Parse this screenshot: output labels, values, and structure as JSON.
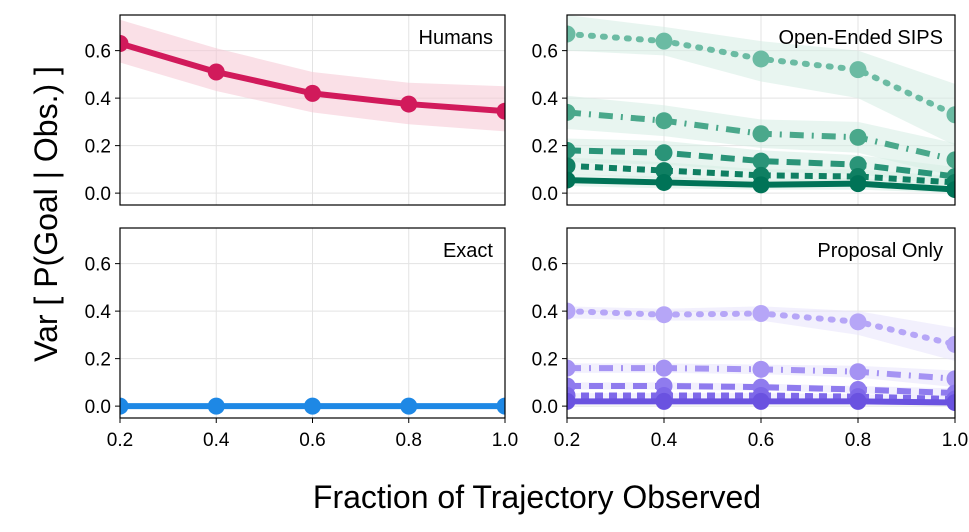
{
  "figure": {
    "xlabel": "Fraction of Trajectory Observed",
    "ylabel": "Var [ P(Goal | Obs.) ]"
  },
  "chart_data": [
    {
      "type": "line",
      "title": "Humans",
      "xlim": [
        0.2,
        1.0
      ],
      "ylim": [
        -0.05,
        0.75
      ],
      "xticks": [
        "0.2",
        "0.4",
        "0.6",
        "0.8",
        "1.0"
      ],
      "yticks": [
        "0.0",
        "0.2",
        "0.4",
        "0.6"
      ],
      "x": [
        0.2,
        0.4,
        0.6,
        0.8,
        1.0
      ],
      "series": [
        {
          "name": "Humans",
          "values": [
            0.63,
            0.51,
            0.42,
            0.375,
            0.345
          ],
          "lower": [
            0.55,
            0.43,
            0.34,
            0.29,
            0.26
          ],
          "upper": [
            0.73,
            0.61,
            0.51,
            0.465,
            0.45
          ],
          "color": "#d11a5b",
          "band_color": "#f5c6d4",
          "style": "solid"
        }
      ]
    },
    {
      "type": "line",
      "title": "Open-Ended SIPS",
      "xlim": [
        0.2,
        1.0
      ],
      "ylim": [
        -0.05,
        0.75
      ],
      "xticks": [
        "0.2",
        "0.4",
        "0.6",
        "0.8",
        "1.0"
      ],
      "yticks": [
        "0.0",
        "0.2",
        "0.4",
        "0.6"
      ],
      "x": [
        0.2,
        0.4,
        0.6,
        0.8,
        1.0
      ],
      "series": [
        {
          "name": "SIPS dotted",
          "values": [
            0.67,
            0.64,
            0.565,
            0.52,
            0.33
          ],
          "lower": [
            0.6,
            0.58,
            0.47,
            0.4,
            0.2
          ],
          "upper": [
            0.75,
            0.7,
            0.64,
            0.6,
            0.46
          ],
          "color": "#6bbba3",
          "band_color": "#d5ece4",
          "style": "dotted"
        },
        {
          "name": "SIPS dash-dot",
          "values": [
            0.34,
            0.305,
            0.25,
            0.235,
            0.14
          ],
          "lower": [
            0.27,
            0.24,
            0.19,
            0.17,
            0.07
          ],
          "upper": [
            0.41,
            0.37,
            0.31,
            0.3,
            0.21
          ],
          "color": "#4aa88b",
          "band_color": "#d5ece4",
          "style": "dashdot"
        },
        {
          "name": "SIPS dashed",
          "values": [
            0.18,
            0.17,
            0.135,
            0.12,
            0.07
          ],
          "lower": [
            0.13,
            0.12,
            0.09,
            0.08,
            0.03
          ],
          "upper": [
            0.23,
            0.22,
            0.18,
            0.16,
            0.11
          ],
          "color": "#2a9478",
          "band_color": "#d5ece4",
          "style": "dashed"
        },
        {
          "name": "SIPS short dash",
          "values": [
            0.115,
            0.095,
            0.075,
            0.07,
            0.045
          ],
          "lower": [
            0.08,
            0.06,
            0.05,
            0.04,
            0.02
          ],
          "upper": [
            0.15,
            0.13,
            0.1,
            0.1,
            0.07
          ],
          "color": "#0f7f62",
          "band_color": "#d5ece4",
          "style": "shortdash"
        },
        {
          "name": "SIPS solid",
          "values": [
            0.055,
            0.045,
            0.035,
            0.04,
            0.015
          ],
          "lower": [
            0.03,
            0.02,
            0.015,
            0.015,
            0.0
          ],
          "upper": [
            0.08,
            0.07,
            0.055,
            0.065,
            0.03
          ],
          "color": "#007357",
          "band_color": "#d5ece4",
          "style": "solid"
        }
      ]
    },
    {
      "type": "line",
      "title": "Exact",
      "xlim": [
        0.2,
        1.0
      ],
      "ylim": [
        -0.05,
        0.75
      ],
      "xticks": [
        "0.2",
        "0.4",
        "0.6",
        "0.8",
        "1.0"
      ],
      "yticks": [
        "0.0",
        "0.2",
        "0.4",
        "0.6"
      ],
      "x": [
        0.2,
        0.4,
        0.6,
        0.8,
        1.0
      ],
      "series": [
        {
          "name": "Exact",
          "values": [
            0.0,
            0.0,
            0.0,
            0.0,
            0.0
          ],
          "color": "#1e88e5",
          "style": "solid"
        }
      ]
    },
    {
      "type": "line",
      "title": "Proposal Only",
      "xlim": [
        0.2,
        1.0
      ],
      "ylim": [
        -0.05,
        0.75
      ],
      "xticks": [
        "0.2",
        "0.4",
        "0.6",
        "0.8",
        "1.0"
      ],
      "yticks": [
        "0.0",
        "0.2",
        "0.4",
        "0.6"
      ],
      "x": [
        0.2,
        0.4,
        0.6,
        0.8,
        1.0
      ],
      "series": [
        {
          "name": "Proposal dotted",
          "values": [
            0.4,
            0.385,
            0.39,
            0.355,
            0.26
          ],
          "lower": [
            0.37,
            0.36,
            0.36,
            0.3,
            0.19
          ],
          "upper": [
            0.42,
            0.41,
            0.42,
            0.4,
            0.33
          ],
          "color": "#b6a6f7",
          "band_color": "#e8e3fb",
          "style": "dotted"
        },
        {
          "name": "Proposal dash-dot",
          "values": [
            0.16,
            0.16,
            0.155,
            0.145,
            0.115
          ],
          "lower": [
            0.14,
            0.14,
            0.135,
            0.12,
            0.08
          ],
          "upper": [
            0.18,
            0.18,
            0.175,
            0.17,
            0.15
          ],
          "color": "#a593f3",
          "band_color": "#e8e3fb",
          "style": "dashdot"
        },
        {
          "name": "Proposal dashed",
          "values": [
            0.085,
            0.085,
            0.08,
            0.07,
            0.055
          ],
          "lower": [
            0.07,
            0.07,
            0.065,
            0.055,
            0.035
          ],
          "upper": [
            0.1,
            0.1,
            0.095,
            0.085,
            0.075
          ],
          "color": "#8f7bee",
          "band_color": "#e8e3fb",
          "style": "dashed"
        },
        {
          "name": "Proposal short dash",
          "values": [
            0.045,
            0.045,
            0.045,
            0.04,
            0.03
          ],
          "lower": [
            0.035,
            0.035,
            0.035,
            0.03,
            0.02
          ],
          "upper": [
            0.055,
            0.055,
            0.055,
            0.05,
            0.04
          ],
          "color": "#7e68e9",
          "band_color": "#e8e3fb",
          "style": "shortdash"
        },
        {
          "name": "Proposal solid",
          "values": [
            0.02,
            0.02,
            0.02,
            0.02,
            0.015
          ],
          "lower": [
            0.012,
            0.012,
            0.012,
            0.012,
            0.008
          ],
          "upper": [
            0.028,
            0.028,
            0.028,
            0.028,
            0.022
          ],
          "color": "#6a52e0",
          "band_color": "#e8e3fb",
          "style": "solid"
        }
      ]
    }
  ]
}
